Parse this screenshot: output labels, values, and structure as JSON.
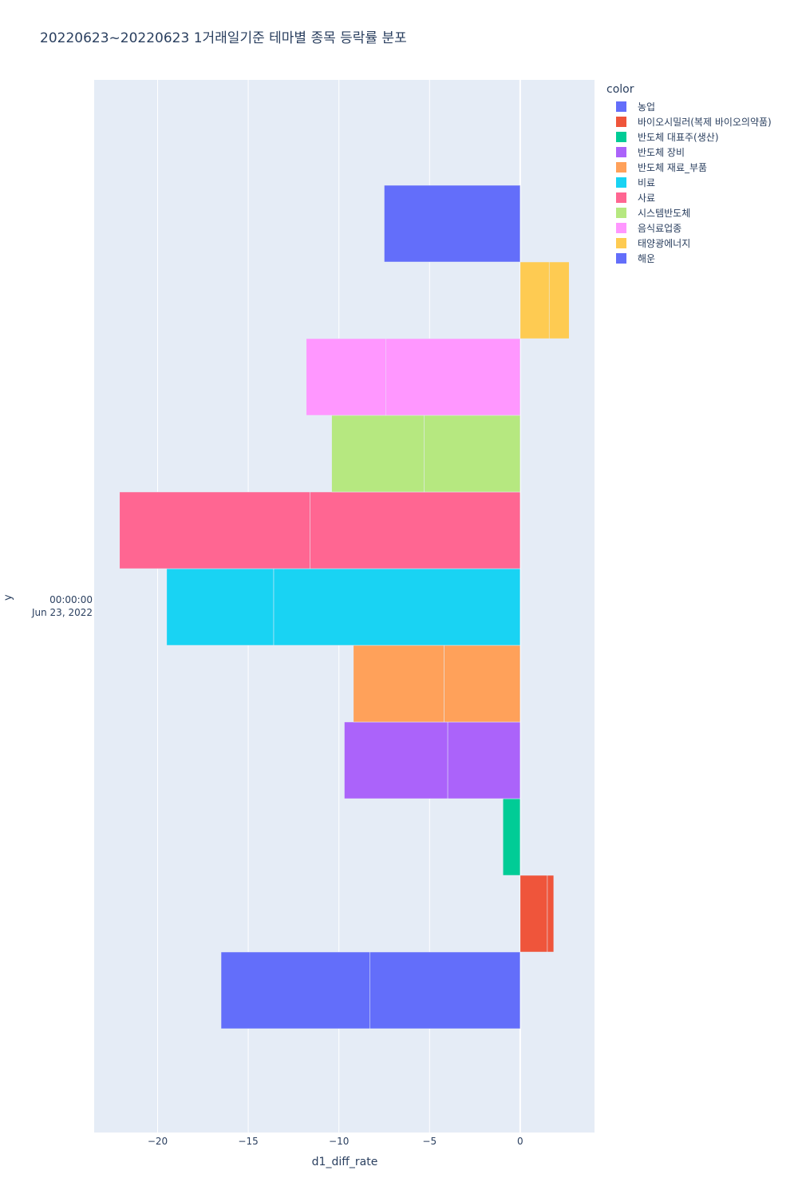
{
  "chart_data": {
    "type": "bar",
    "orientation": "horizontal",
    "title": "20220623~20220623 1거래일기준 테마별 종목 등락률 분포",
    "xlabel": "d1_diff_rate",
    "ylabel": "y",
    "xlim": [
      -23.5,
      4.1
    ],
    "xticks": [
      -20,
      -15,
      -10,
      -5,
      0
    ],
    "xtick_labels": [
      "−20",
      "−15",
      "−10",
      "−5",
      "0"
    ],
    "yticks": [
      "00:00:00",
      "Jun 23, 2022"
    ],
    "grid": true,
    "legend_title": "color",
    "legend_position": "right",
    "series": [
      {
        "name": "농업",
        "color": "#636efa",
        "values": [
          -8.3,
          -8.2
        ]
      },
      {
        "name": "바이오시밀러(복제 바이오의약품)",
        "color": "#EF553B",
        "values": [
          1.5,
          0.35
        ]
      },
      {
        "name": "반도체 대표주(생산)",
        "color": "#00cc96",
        "values": [
          -0.95
        ]
      },
      {
        "name": "반도체 장비",
        "color": "#ab63fa",
        "values": [
          -4.0,
          -5.7
        ]
      },
      {
        "name": "반도체 재료_부품",
        "color": "#FFA15A",
        "values": [
          -4.2,
          -5.0
        ]
      },
      {
        "name": "비료",
        "color": "#19d3f3",
        "values": [
          -13.6,
          -5.9
        ]
      },
      {
        "name": "사료",
        "color": "#FF6692",
        "values": [
          -11.6,
          -10.5
        ]
      },
      {
        "name": "시스템반도체",
        "color": "#B6E880",
        "values": [
          -5.3,
          -5.1
        ]
      },
      {
        "name": "음식료업종",
        "color": "#FF97FF",
        "values": [
          -7.4,
          -4.4
        ]
      },
      {
        "name": "태양광에너지",
        "color": "#FECB52",
        "values": [
          1.6,
          1.1
        ]
      },
      {
        "name": "해운",
        "color": "#636efa",
        "values": [
          -7.5
        ]
      }
    ]
  }
}
